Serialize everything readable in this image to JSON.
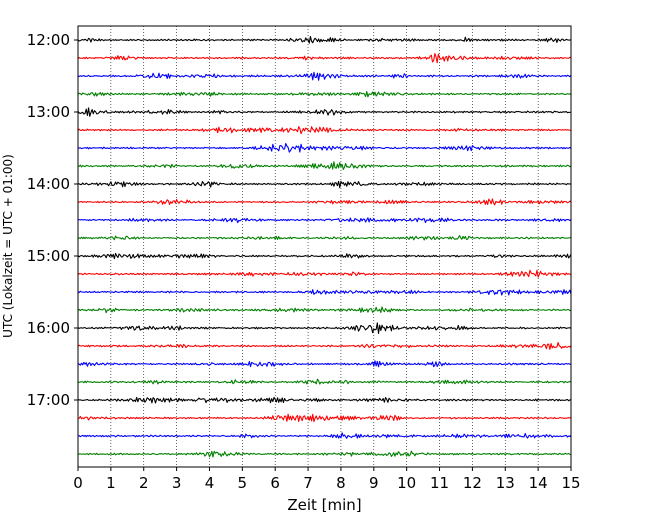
{
  "chart_data": {
    "type": "line",
    "title": "",
    "xlabel": "Zeit  [min]",
    "ylabel": "UTC (Lokalzeit = UTC + 01:00)",
    "xlim": [
      0,
      15
    ],
    "x_ticks": [
      0,
      1,
      2,
      3,
      4,
      5,
      6,
      7,
      8,
      9,
      10,
      11,
      12,
      13,
      14,
      15
    ],
    "x_tick_labels": [
      "0",
      "1",
      "2",
      "3",
      "4",
      "5",
      "6",
      "7",
      "8",
      "9",
      "10",
      "11",
      "12",
      "13",
      "14",
      "15"
    ],
    "y_tick_labels": [
      "12:00",
      "13:00",
      "14:00",
      "15:00",
      "16:00",
      "17:00"
    ],
    "grid": "vertical dotted",
    "legend": "none",
    "trace_interval_minutes": 15,
    "colors": [
      "#000000",
      "#ff0000",
      "#0000ff",
      "#008000"
    ],
    "series": [
      {
        "start": "12:00",
        "color": "#000000"
      },
      {
        "start": "12:15",
        "color": "#ff0000"
      },
      {
        "start": "12:30",
        "color": "#0000ff"
      },
      {
        "start": "12:45",
        "color": "#008000"
      },
      {
        "start": "13:00",
        "color": "#000000"
      },
      {
        "start": "13:15",
        "color": "#ff0000"
      },
      {
        "start": "13:30",
        "color": "#0000ff"
      },
      {
        "start": "13:45",
        "color": "#008000"
      },
      {
        "start": "14:00",
        "color": "#000000"
      },
      {
        "start": "14:15",
        "color": "#ff0000"
      },
      {
        "start": "14:30",
        "color": "#0000ff"
      },
      {
        "start": "14:45",
        "color": "#008000"
      },
      {
        "start": "15:00",
        "color": "#000000"
      },
      {
        "start": "15:15",
        "color": "#ff0000"
      },
      {
        "start": "15:30",
        "color": "#0000ff"
      },
      {
        "start": "15:45",
        "color": "#008000"
      },
      {
        "start": "16:00",
        "color": "#000000"
      },
      {
        "start": "16:15",
        "color": "#ff0000"
      },
      {
        "start": "16:30",
        "color": "#0000ff"
      },
      {
        "start": "16:45",
        "color": "#008000"
      },
      {
        "start": "17:00",
        "color": "#000000"
      },
      {
        "start": "17:15",
        "color": "#ff0000"
      },
      {
        "start": "17:30",
        "color": "#0000ff"
      },
      {
        "start": "17:45",
        "color": "#008000"
      }
    ]
  }
}
